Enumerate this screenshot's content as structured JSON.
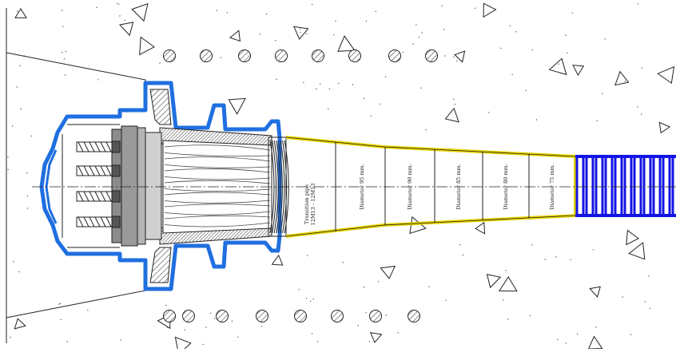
{
  "segment_labels": {
    "transition": [
      "Transition pipe",
      "12M13 - 12M13"
    ],
    "d95": "Diameter 95 mm.",
    "d90": "Diameter 90 mm.",
    "d85": "Diameter 85 mm.",
    "d80": "Diameter 80 mm.",
    "d75": "Diameter 75 mm."
  },
  "colors": {
    "outline_blue": "#1f6fe0",
    "corrugated_blue": "#1414e6",
    "tube_yellow": "#e6d200",
    "line": "#222222",
    "hatch_gray": "#7a7a7a",
    "plate_gray": "#8c8c8c"
  }
}
